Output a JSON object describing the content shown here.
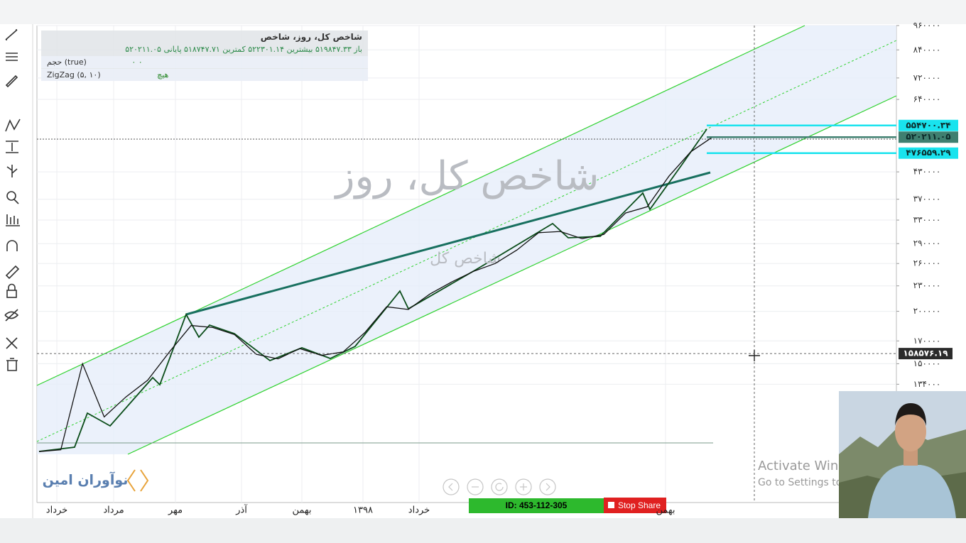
{
  "legend": {
    "title": "شاخص کل، روز، شاخص",
    "ohlc": "باز ۵۱۹۸۴۷.۳۳  بیشترین ۵۲۲۳۰۱.۱۴  کمترین ۵۱۸۷۴۷.۷۱  پایانی ۵۲۰۲۱۱.۰۵",
    "volume": "حجم (true)",
    "volume_value": "۰  ۰",
    "zigzag": "ZigZag (۵, ۱۰)",
    "zigzag_value": "هیچ"
  },
  "watermark": {
    "large": "شاخص کل، روز",
    "small": "شاخص کل"
  },
  "chart_data": {
    "type": "line",
    "log_scale": true,
    "color": "#111111",
    "categories": [
      null,
      null,
      null,
      null,
      null,
      null,
      null,
      null,
      null,
      null,
      null,
      null,
      null,
      null,
      null,
      null,
      null,
      null,
      null,
      null,
      null,
      null,
      null,
      null,
      null,
      null,
      null,
      null,
      null,
      null,
      null,
      null
    ],
    "values": [
      92600,
      93500,
      150000,
      112000,
      125000,
      137000,
      160000,
      185000,
      183000,
      176000,
      158000,
      154000,
      163000,
      157000,
      160000,
      178000,
      205000,
      202000,
      220000,
      235000,
      249000,
      260000,
      280000,
      308000,
      310000,
      298000,
      305000,
      343000,
      355000,
      420000,
      480000,
      520211.05
    ],
    "ylim": [
      70000,
      960000
    ],
    "yticks": [
      {
        "value": 960000,
        "label": "۹۶۰۰۰۰"
      },
      {
        "value": 840000,
        "label": "۸۴۰۰۰۰"
      },
      {
        "value": 720000,
        "label": "۷۲۰۰۰۰"
      },
      {
        "value": 640000,
        "label": "۶۴۰۰۰۰"
      },
      {
        "value": 430000,
        "label": "۴۳۰۰۰۰"
      },
      {
        "value": 370000,
        "label": "۳۷۰۰۰۰"
      },
      {
        "value": 330000,
        "label": "۳۳۰۰۰۰"
      },
      {
        "value": 290000,
        "label": "۲۹۰۰۰۰"
      },
      {
        "value": 260000,
        "label": "۲۶۰۰۰۰"
      },
      {
        "value": 230000,
        "label": "۲۳۰۰۰۰"
      },
      {
        "value": 200000,
        "label": "۲۰۰۰۰۰"
      },
      {
        "value": 170000,
        "label": "۱۷۰۰۰۰"
      },
      {
        "value": 150000,
        "label": "۱۵۰۰۰۰"
      },
      {
        "value": 134000,
        "label": "۱۳۴۰۰۰"
      }
    ],
    "grid": true,
    "levels": [
      {
        "value": 554700.34,
        "label": "۵۵۴۷۰۰.۳۴",
        "color": "#19e3ee"
      },
      {
        "value": 520211.05,
        "label": "۵۲۰۲۱۱.۰۵",
        "color": "#3f7f70"
      },
      {
        "value": 476559.29,
        "label": "۴۷۶۵۵۹.۲۹",
        "color": "#19e3ee"
      }
    ],
    "crosshair": {
      "value": 158576.19,
      "label": "۱۵۸۵۷۶.۱۹"
    },
    "xlabels": [
      "خرداد",
      "مرداد",
      "مهر",
      "آذر",
      "بهمن",
      "۱۳۹۸",
      "خرداد",
      "بهمن"
    ]
  },
  "logo": "نوآوران امین",
  "activation": {
    "title": "Activate Win",
    "subtitle": "Go to Settings to"
  },
  "share_bar": {
    "id": "ID: 453-112-305",
    "stop": "Stop Share"
  }
}
